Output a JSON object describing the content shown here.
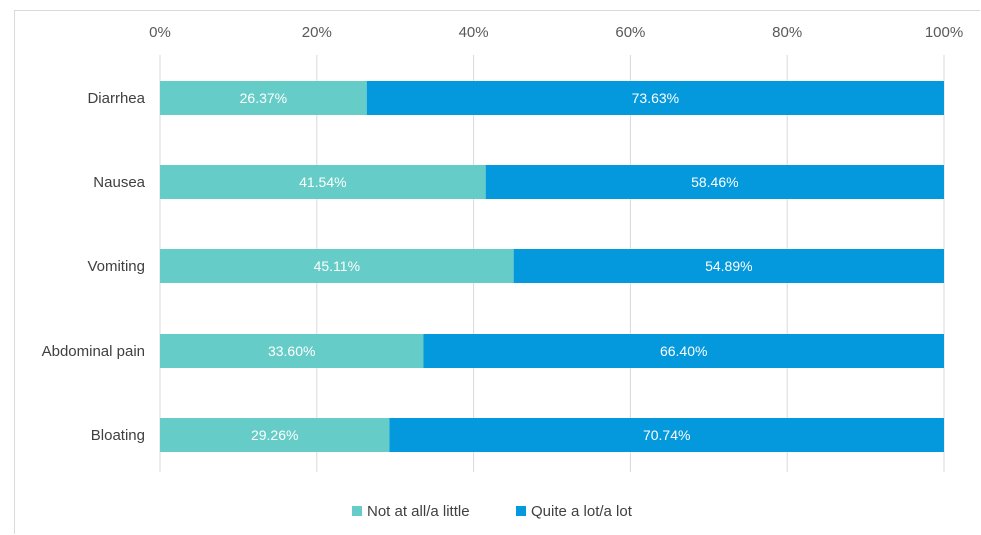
{
  "chart_data": {
    "type": "bar",
    "orientation": "horizontal",
    "stacked": true,
    "percent_stacked": true,
    "title": "",
    "xlabel": "",
    "ylabel": "",
    "xlim": [
      0,
      100
    ],
    "x_ticks": [
      "0%",
      "20%",
      "40%",
      "60%",
      "80%",
      "100%"
    ],
    "x_axis_position": "top",
    "grid": true,
    "legend_position": "bottom",
    "categories": [
      "Diarrhea",
      "Nausea",
      "Vomiting",
      "Abdominal pain",
      "Bloating"
    ],
    "series": [
      {
        "name": "Not at all/a little",
        "color": "#66ccc7",
        "values": [
          26.37,
          41.54,
          45.11,
          33.6,
          29.26
        ],
        "labels": [
          "26.37%",
          "41.54%",
          "45.11%",
          "33.60%",
          "29.26%"
        ]
      },
      {
        "name": "Quite a lot/a lot",
        "color": "#0399dc",
        "values": [
          73.63,
          58.46,
          54.89,
          66.4,
          70.74
        ],
        "labels": [
          "73.63%",
          "58.46%",
          "54.89%",
          "66.40%",
          "70.74%"
        ]
      }
    ]
  }
}
